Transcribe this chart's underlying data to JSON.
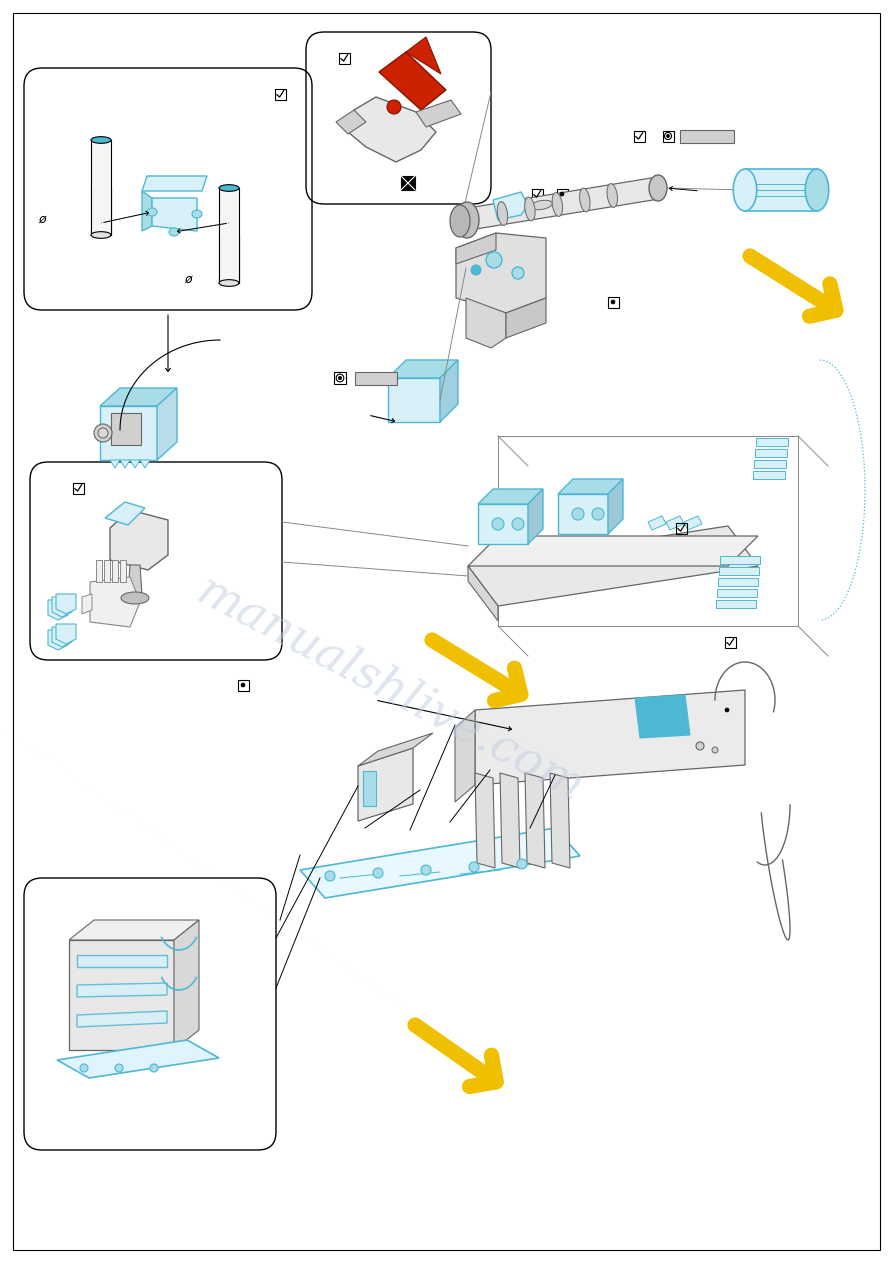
{
  "bg_color": "#ffffff",
  "cyan_color": "#4db8d4",
  "light_cyan": "#a8dde8",
  "cyan_fill": "#d8f0f8",
  "yellow_color": "#f0c000",
  "red_color": "#cc2200",
  "gray_color": "#aaaaaa",
  "light_gray": "#d0d0d0",
  "dark_gray": "#666666",
  "line_gray": "#888888",
  "watermark_color": "#c0cce0",
  "watermark_text": "manualshlive.com",
  "page_width": 8.93,
  "page_height": 12.63,
  "dpi": 100
}
